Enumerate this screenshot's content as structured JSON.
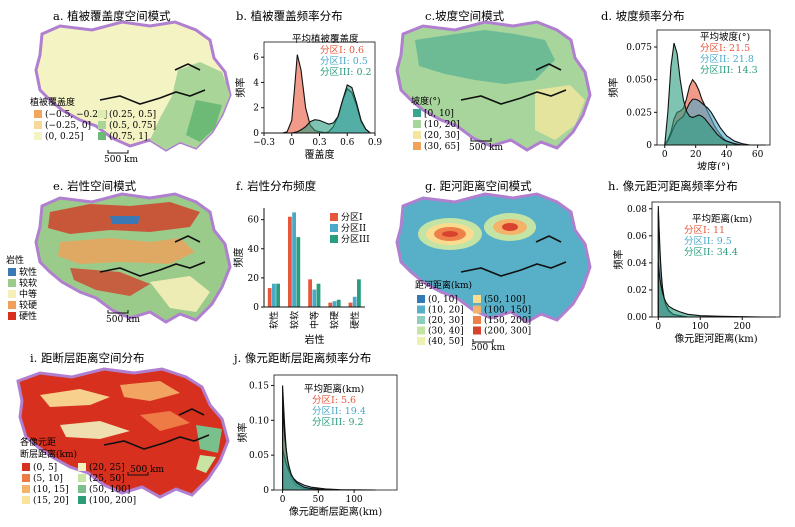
{
  "colors": {
    "zone1": "#e8573b",
    "zone2": "#4aa9c9",
    "zone3": "#2a9d7f",
    "boundary": "#b07fd0"
  },
  "panels": {
    "a": {
      "title": "a. 植被覆盖度空间模式",
      "legend_title": "植被覆盖度",
      "legend": [
        {
          "label": "(−0.5, −0.25]",
          "color": "#f2a55b"
        },
        {
          "label": "(−0.25, 0]",
          "color": "#f8d79a"
        },
        {
          "label": "(0, 0.25]",
          "color": "#f4f3c4"
        },
        {
          "label": "(0.25, 0.5]",
          "color": "#dcedb0"
        },
        {
          "label": "(0.5, 0.75]",
          "color": "#a9d598"
        },
        {
          "label": "(0.75, 1]",
          "color": "#6cba76"
        }
      ],
      "scale": "500 km"
    },
    "c": {
      "title": "c.坡度空间模式",
      "legend_title": "坡度(°)",
      "legend": [
        {
          "label": "[0, 10]",
          "color": "#3aa58f"
        },
        {
          "label": "(10, 20]",
          "color": "#a8d59c"
        },
        {
          "label": "(20, 30]",
          "color": "#f2e7a0"
        },
        {
          "label": "(30, 65]",
          "color": "#f0a35c"
        }
      ],
      "scale": "500 km"
    },
    "e": {
      "title": "e. 岩性空间模式",
      "legend_title": "岩性",
      "legend": [
        {
          "label": "软性",
          "color": "#3b78b4"
        },
        {
          "label": "较软",
          "color": "#9bcb8a"
        },
        {
          "label": "中等",
          "color": "#f6f0b8"
        },
        {
          "label": "较硬",
          "color": "#f0a05a"
        },
        {
          "label": "硬性",
          "color": "#d7301f"
        }
      ],
      "scale": "500 km"
    },
    "g": {
      "title": "g. 距河距离空间模式",
      "legend_title": "距河距离(km)",
      "legend": [
        {
          "label": "(0, 10]",
          "color": "#2f7ab7"
        },
        {
          "label": "(10, 20]",
          "color": "#58b0c8"
        },
        {
          "label": "(20, 30]",
          "color": "#8ccfbf"
        },
        {
          "label": "(30, 40]",
          "color": "#c4e4a6"
        },
        {
          "label": "(40, 50]",
          "color": "#eef2b0"
        },
        {
          "label": "(50, 100]",
          "color": "#f9dc8f"
        },
        {
          "label": "(100, 150]",
          "color": "#f5b26a"
        },
        {
          "label": "(150, 200]",
          "color": "#ee8149"
        },
        {
          "label": "(200, 300]",
          "color": "#d8432f"
        }
      ],
      "scale": "500 km"
    },
    "i": {
      "title": "i. 距断层距离空间分布",
      "legend_title_1": "各像元距",
      "legend_title_2": "断层距离(km)",
      "legend": [
        {
          "label": "(0, 5]",
          "color": "#d7301f"
        },
        {
          "label": "(5, 10]",
          "color": "#ee7a45"
        },
        {
          "label": "(10, 15]",
          "color": "#f5b36a"
        },
        {
          "label": "(15, 20]",
          "color": "#fbe29a"
        },
        {
          "label": "(20, 25]",
          "color": "#f2f2c0"
        },
        {
          "label": "(25, 50]",
          "color": "#c8e4a3"
        },
        {
          "label": "(50, 100]",
          "color": "#79c08c"
        },
        {
          "label": "(100, 200]",
          "color": "#2e9b78"
        }
      ],
      "scale": "500 km"
    }
  },
  "chart_data": [
    {
      "id": "b",
      "type": "area",
      "title": "b. 植被覆盖频率分布",
      "xlabel": "覆盖度",
      "ylabel": "频率",
      "xlim": [
        -0.3,
        0.9
      ],
      "ylim": [
        0,
        7.2
      ],
      "xticks": [
        "−0.3",
        "0",
        "0.3",
        "0.6",
        "0.9"
      ],
      "xtick_values": [
        -0.3,
        0,
        0.3,
        0.6,
        0.9
      ],
      "yticks": [
        "0",
        "2",
        "4",
        "6"
      ],
      "ytick_values": [
        0,
        2,
        4,
        6
      ],
      "annotation_title": "平均植被覆盖度",
      "means": [
        {
          "label": "分区I: 0.6"
        },
        {
          "label": "分区II: 0.5"
        },
        {
          "label": "分区III: 0.2"
        }
      ],
      "x": [
        -0.3,
        -0.2,
        -0.1,
        -0.05,
        0,
        0.03,
        0.06,
        0.1,
        0.15,
        0.2,
        0.25,
        0.3,
        0.35,
        0.4,
        0.45,
        0.5,
        0.55,
        0.6,
        0.65,
        0.7,
        0.75,
        0.8,
        0.85,
        0.9
      ],
      "series": [
        {
          "values": [
            0,
            0,
            0,
            0.1,
            1.0,
            3.5,
            6.2,
            5.0,
            2.0,
            0.6,
            0.2,
            0.1,
            0.05,
            0,
            0,
            0,
            0,
            0,
            0,
            0,
            0,
            0,
            0,
            0
          ]
        },
        {
          "values": [
            0,
            0,
            0,
            0,
            0,
            0,
            0,
            0,
            0,
            0,
            0,
            0,
            0,
            0.1,
            0.5,
            1.3,
            2.6,
            3.5,
            3.2,
            2.2,
            0.9,
            0.3,
            0,
            0
          ]
        },
        {
          "values": [
            0,
            0,
            0,
            0,
            0,
            0.05,
            0.1,
            0.25,
            0.5,
            0.9,
            1.05,
            1.0,
            0.85,
            0.7,
            0.8,
            1.3,
            2.6,
            3.8,
            3.6,
            2.4,
            1.0,
            0.3,
            0,
            0
          ]
        }
      ]
    },
    {
      "id": "d",
      "type": "area",
      "title": "d. 坡度频率分布",
      "xlabel": "坡度(°)",
      "ylabel": "频率",
      "xlim": [
        -5,
        68
      ],
      "ylim": [
        0,
        0.088
      ],
      "xticks": [
        "0",
        "20",
        "40",
        "60"
      ],
      "xtick_values": [
        0,
        20,
        40,
        60
      ],
      "yticks": [
        "0",
        "0.025",
        "0.050",
        "0.075"
      ],
      "ytick_values": [
        0,
        0.025,
        0.05,
        0.075
      ],
      "annotation_title": "平均坡度(°)",
      "means": [
        {
          "label": "分区I: 21.5"
        },
        {
          "label": "分区II: 21.8"
        },
        {
          "label": "分区III: 14.3"
        }
      ],
      "x": [
        0,
        2,
        4,
        6,
        8,
        10,
        12,
        14,
        16,
        18,
        20,
        22,
        24,
        26,
        28,
        30,
        32,
        34,
        36,
        38,
        40,
        45,
        50,
        55,
        60,
        65
      ],
      "series": [
        {
          "values": [
            0,
            0.004,
            0.01,
            0.02,
            0.025,
            0.026,
            0.028,
            0.035,
            0.045,
            0.05,
            0.047,
            0.042,
            0.035,
            0.03,
            0.025,
            0.02,
            0.015,
            0.011,
            0.008,
            0.005,
            0.003,
            0.001,
            0,
            0,
            0,
            0
          ]
        },
        {
          "values": [
            0,
            0.003,
            0.008,
            0.014,
            0.018,
            0.02,
            0.022,
            0.027,
            0.032,
            0.035,
            0.035,
            0.034,
            0.032,
            0.03,
            0.028,
            0.025,
            0.021,
            0.017,
            0.013,
            0.01,
            0.007,
            0.003,
            0.001,
            0,
            0,
            0
          ]
        },
        {
          "values": [
            0,
            0.025,
            0.06,
            0.078,
            0.07,
            0.05,
            0.035,
            0.026,
            0.022,
            0.021,
            0.022,
            0.023,
            0.022,
            0.02,
            0.017,
            0.014,
            0.011,
            0.008,
            0.006,
            0.004,
            0.003,
            0.001,
            0,
            0,
            0,
            0
          ]
        }
      ]
    },
    {
      "id": "f",
      "type": "bar",
      "title": "f. 岩性分布频度",
      "xlabel": "岩性",
      "ylabel": "频度",
      "ylim": [
        0,
        68
      ],
      "yticks": [
        "0",
        "20",
        "40",
        "60"
      ],
      "ytick_values": [
        0,
        20,
        40,
        60
      ],
      "categories": [
        "软性",
        "较软",
        "中等",
        "较硬",
        "硬性"
      ],
      "series": [
        {
          "name": "分区I",
          "values": [
            13,
            62,
            19,
            3,
            3
          ]
        },
        {
          "name": "分区II",
          "values": [
            16,
            65,
            12,
            4,
            7
          ]
        },
        {
          "name": "分区III",
          "values": [
            16,
            48,
            16,
            5,
            19
          ]
        }
      ]
    },
    {
      "id": "h",
      "type": "area",
      "title": "h. 像元距河距离频率分布",
      "xlabel": "像元距河距离(km)",
      "ylabel": "频率",
      "xlim": [
        -15,
        290
      ],
      "ylim": [
        0,
        0.085
      ],
      "xticks": [
        "0",
        "100",
        "200"
      ],
      "xtick_values": [
        0,
        100,
        200
      ],
      "yticks": [
        "0.00",
        "0.02",
        "0.04",
        "0.06",
        "0.08"
      ],
      "ytick_values": [
        0,
        0.02,
        0.04,
        0.06,
        0.08
      ],
      "annotation_title": "平均距离(km)",
      "means": [
        {
          "label": "分区I: 11"
        },
        {
          "label": "分区II: 9.5"
        },
        {
          "label": "分区II: 34.4"
        }
      ],
      "x": [
        0,
        2,
        4,
        6,
        8,
        10,
        14,
        18,
        25,
        35,
        50,
        70,
        100,
        150,
        200,
        250,
        280
      ],
      "series": [
        {
          "values": [
            0.078,
            0.06,
            0.045,
            0.035,
            0.027,
            0.02,
            0.013,
            0.008,
            0.004,
            0.002,
            0.001,
            0,
            0,
            0,
            0,
            0,
            0
          ]
        },
        {
          "values": [
            0.082,
            0.065,
            0.05,
            0.038,
            0.029,
            0.022,
            0.014,
            0.009,
            0.005,
            0.002,
            0.001,
            0,
            0,
            0,
            0,
            0,
            0
          ]
        },
        {
          "values": [
            0.04,
            0.033,
            0.028,
            0.024,
            0.021,
            0.018,
            0.014,
            0.011,
            0.008,
            0.006,
            0.004,
            0.002,
            0.001,
            0.0005,
            0.0002,
            0,
            0
          ]
        }
      ]
    },
    {
      "id": "j",
      "type": "area",
      "title": "j. 像元距断层距离频率分布",
      "xlabel": "像元距断层距离(km)",
      "ylabel": "频率",
      "xlim": [
        -12,
        160
      ],
      "ylim": [
        0,
        0.165
      ],
      "xticks": [
        "0",
        "50",
        "100"
      ],
      "xtick_values": [
        0,
        50,
        100
      ],
      "yticks": [
        "0",
        "0.05",
        "0.10",
        "0.15"
      ],
      "ytick_values": [
        0,
        0.05,
        0.1,
        0.15
      ],
      "annotation_title": "平均距离(km)",
      "means": [
        {
          "label": "分区I: 5.6"
        },
        {
          "label": "分区II: 19.4"
        },
        {
          "label": "分区III: 9.2"
        }
      ],
      "x": [
        0,
        1,
        2,
        3,
        4,
        5,
        7,
        9,
        12,
        16,
        20,
        30,
        40,
        60,
        80,
        100,
        130
      ],
      "series": [
        {
          "values": [
            0.15,
            0.13,
            0.11,
            0.09,
            0.075,
            0.06,
            0.042,
            0.03,
            0.018,
            0.01,
            0.006,
            0.002,
            0.001,
            0,
            0,
            0,
            0
          ]
        },
        {
          "values": [
            0.06,
            0.055,
            0.05,
            0.046,
            0.042,
            0.038,
            0.032,
            0.027,
            0.021,
            0.016,
            0.012,
            0.007,
            0.004,
            0.0015,
            0.0005,
            0.0002,
            0
          ]
        },
        {
          "values": [
            0.12,
            0.105,
            0.09,
            0.078,
            0.068,
            0.058,
            0.044,
            0.034,
            0.023,
            0.015,
            0.01,
            0.004,
            0.002,
            0.0005,
            0,
            0,
            0
          ]
        }
      ]
    }
  ]
}
